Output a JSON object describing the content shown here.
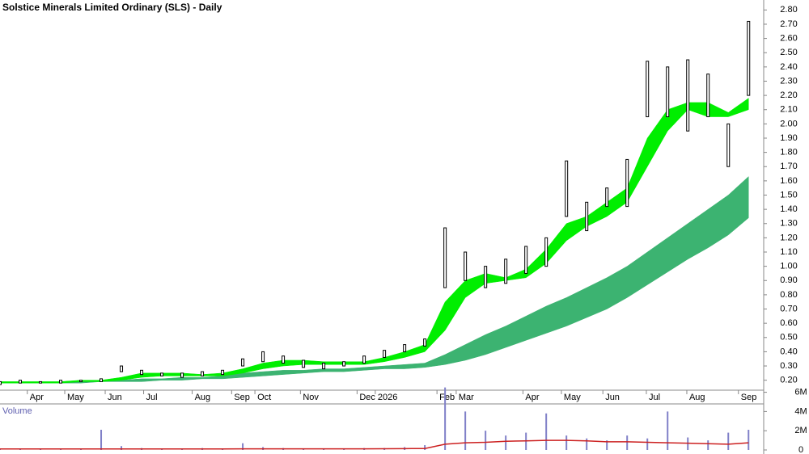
{
  "chart_data": [
    {
      "type": "stock",
      "title": "Solstice Minerals Limited Ordinary (SLS) - Daily",
      "x": [
        0,
        2,
        4,
        6,
        8,
        10,
        12,
        14,
        16,
        18,
        20,
        22,
        24,
        26,
        28,
        30,
        32,
        34,
        36,
        38,
        40,
        42,
        44,
        46,
        48,
        50,
        52,
        54,
        56,
        58,
        60,
        62,
        64,
        66,
        68,
        70,
        72,
        74
      ],
      "high": [
        0.19,
        0.2,
        0.19,
        0.2,
        0.2,
        0.21,
        0.3,
        0.27,
        0.25,
        0.25,
        0.26,
        0.27,
        0.35,
        0.4,
        0.37,
        0.34,
        0.32,
        0.33,
        0.37,
        0.41,
        0.45,
        0.49,
        1.27,
        1.1,
        1.0,
        1.05,
        1.14,
        1.2,
        1.74,
        1.45,
        1.55,
        1.75,
        2.44,
        2.4,
        2.45,
        2.35,
        2.0,
        2.72
      ],
      "low": [
        0.17,
        0.18,
        0.18,
        0.18,
        0.19,
        0.19,
        0.26,
        0.24,
        0.23,
        0.22,
        0.23,
        0.24,
        0.3,
        0.33,
        0.32,
        0.29,
        0.28,
        0.3,
        0.32,
        0.36,
        0.4,
        0.44,
        0.85,
        0.9,
        0.85,
        0.88,
        0.95,
        1.0,
        1.35,
        1.25,
        1.42,
        1.42,
        2.05,
        2.05,
        1.95,
        2.05,
        1.7,
        2.2
      ],
      "color": "#000000",
      "bands": [
        {
          "color": "#3cb371",
          "upper": [
            0.18,
            0.18,
            0.18,
            0.19,
            0.19,
            0.19,
            0.2,
            0.21,
            0.21,
            0.22,
            0.22,
            0.23,
            0.25,
            0.26,
            0.27,
            0.27,
            0.28,
            0.28,
            0.29,
            0.3,
            0.31,
            0.32,
            0.38,
            0.45,
            0.52,
            0.58,
            0.65,
            0.72,
            0.78,
            0.85,
            0.92,
            1.0,
            1.1,
            1.2,
            1.3,
            1.4,
            1.5,
            1.63
          ],
          "lower": [
            0.18,
            0.18,
            0.18,
            0.18,
            0.18,
            0.19,
            0.19,
            0.19,
            0.2,
            0.2,
            0.21,
            0.21,
            0.22,
            0.23,
            0.24,
            0.25,
            0.26,
            0.26,
            0.27,
            0.28,
            0.28,
            0.29,
            0.31,
            0.34,
            0.38,
            0.43,
            0.48,
            0.53,
            0.58,
            0.64,
            0.7,
            0.78,
            0.87,
            0.96,
            1.05,
            1.13,
            1.22,
            1.34
          ]
        },
        {
          "color": "#00ee00",
          "upper": [
            0.19,
            0.19,
            0.19,
            0.19,
            0.2,
            0.2,
            0.22,
            0.25,
            0.25,
            0.25,
            0.24,
            0.25,
            0.28,
            0.32,
            0.34,
            0.34,
            0.33,
            0.33,
            0.33,
            0.36,
            0.4,
            0.45,
            0.75,
            0.9,
            0.95,
            0.92,
            0.98,
            1.12,
            1.3,
            1.35,
            1.45,
            1.55,
            1.9,
            2.1,
            2.15,
            2.15,
            2.08,
            2.18
          ],
          "lower": [
            0.18,
            0.18,
            0.18,
            0.18,
            0.19,
            0.19,
            0.2,
            0.22,
            0.23,
            0.23,
            0.23,
            0.23,
            0.25,
            0.28,
            0.3,
            0.31,
            0.31,
            0.31,
            0.31,
            0.33,
            0.36,
            0.4,
            0.55,
            0.78,
            0.88,
            0.9,
            0.92,
            1.02,
            1.18,
            1.28,
            1.35,
            1.45,
            1.7,
            1.95,
            2.1,
            2.05,
            2.05,
            2.1
          ]
        }
      ],
      "xlim": [
        0,
        75.5
      ],
      "xticks": [
        {
          "value": 2.7,
          "label": "Apr"
        },
        {
          "value": 6.4,
          "label": "May"
        },
        {
          "value": 10.4,
          "label": "Jun"
        },
        {
          "value": 14.2,
          "label": "Jul"
        },
        {
          "value": 19,
          "label": "Aug"
        },
        {
          "value": 22.9,
          "label": "Sep"
        },
        {
          "value": 25.2,
          "label": "Oct"
        },
        {
          "value": 29.7,
          "label": "Nov"
        },
        {
          "value": 35.3,
          "label": "Dec"
        },
        {
          "value": 37.1,
          "label": "2026"
        },
        {
          "value": 43.2,
          "label": "Feb"
        },
        {
          "value": 45.1,
          "label": "Mar"
        },
        {
          "value": 51.7,
          "label": "Apr"
        },
        {
          "value": 55.5,
          "label": "May"
        },
        {
          "value": 59.6,
          "label": "Jun"
        },
        {
          "value": 63.9,
          "label": "Jul"
        },
        {
          "value": 67.9,
          "label": "Aug"
        },
        {
          "value": 73,
          "label": "Sep"
        }
      ],
      "ylim": [
        0.13,
        2.87
      ],
      "yticks": [
        {
          "value": 0.2,
          "label": "0.20"
        },
        {
          "value": 0.3,
          "label": "0.30"
        },
        {
          "value": 0.4,
          "label": "0.40"
        },
        {
          "value": 0.5,
          "label": "0.50"
        },
        {
          "value": 0.6,
          "label": "0.60"
        },
        {
          "value": 0.7,
          "label": "0.70"
        },
        {
          "value": 0.8,
          "label": "0.80"
        },
        {
          "value": 0.9,
          "label": "0.90"
        },
        {
          "value": 1.0,
          "label": "1.00"
        },
        {
          "value": 1.1,
          "label": "1.10"
        },
        {
          "value": 1.2,
          "label": "1.20"
        },
        {
          "value": 1.3,
          "label": "1.30"
        },
        {
          "value": 1.4,
          "label": "1.40"
        },
        {
          "value": 1.5,
          "label": "1.50"
        },
        {
          "value": 1.6,
          "label": "1.60"
        },
        {
          "value": 1.7,
          "label": "1.70"
        },
        {
          "value": 1.8,
          "label": "1.80"
        },
        {
          "value": 1.9,
          "label": "1.90"
        },
        {
          "value": 2.0,
          "label": "2.00"
        },
        {
          "value": 2.1,
          "label": "2.10"
        },
        {
          "value": 2.2,
          "label": "2.20"
        },
        {
          "value": 2.3,
          "label": "2.30"
        },
        {
          "value": 2.4,
          "label": "2.40"
        },
        {
          "value": 2.5,
          "label": "2.50"
        },
        {
          "value": 2.6,
          "label": "2.60"
        },
        {
          "value": 2.7,
          "label": "2.70"
        },
        {
          "value": 2.8,
          "label": "2.80"
        }
      ]
    },
    {
      "type": "bar",
      "title": "Volume",
      "x": [
        0,
        2,
        4,
        6,
        8,
        10,
        12,
        14,
        16,
        18,
        20,
        22,
        24,
        26,
        28,
        30,
        32,
        34,
        36,
        38,
        40,
        42,
        44,
        46,
        48,
        50,
        52,
        54,
        56,
        58,
        60,
        62,
        64,
        66,
        68,
        70,
        72,
        74
      ],
      "values": [
        100000,
        100000,
        100000,
        100000,
        100000,
        2100000,
        400000,
        200000,
        100000,
        100000,
        200000,
        100000,
        700000,
        300000,
        200000,
        100000,
        100000,
        100000,
        200000,
        200000,
        300000,
        500000,
        6500000,
        4000000,
        2000000,
        1500000,
        1800000,
        3800000,
        1500000,
        1200000,
        1000000,
        1500000,
        1200000,
        4000000,
        1300000,
        1000000,
        1800000,
        2100000
      ],
      "color": "#8080c8",
      "moving_average": {
        "color": "#cc2020",
        "values": [
          100000,
          100000,
          100000,
          100000,
          100000,
          100000,
          100000,
          100000,
          100000,
          100000,
          100000,
          100000,
          120000,
          120000,
          120000,
          120000,
          120000,
          120000,
          120000,
          130000,
          140000,
          150000,
          600000,
          750000,
          800000,
          900000,
          950000,
          1000000,
          1000000,
          950000,
          850000,
          850000,
          800000,
          750000,
          700000,
          650000,
          600000,
          750000
        ]
      },
      "xlim": [
        0,
        75.5
      ],
      "ylim": [
        0,
        6300000
      ],
      "yticks": [
        0,
        {
          "value": 2000000,
          "label": "2M"
        },
        {
          "value": 4000000,
          "label": "4M"
        },
        {
          "value": 6000000,
          "label": "6M"
        }
      ]
    }
  ]
}
